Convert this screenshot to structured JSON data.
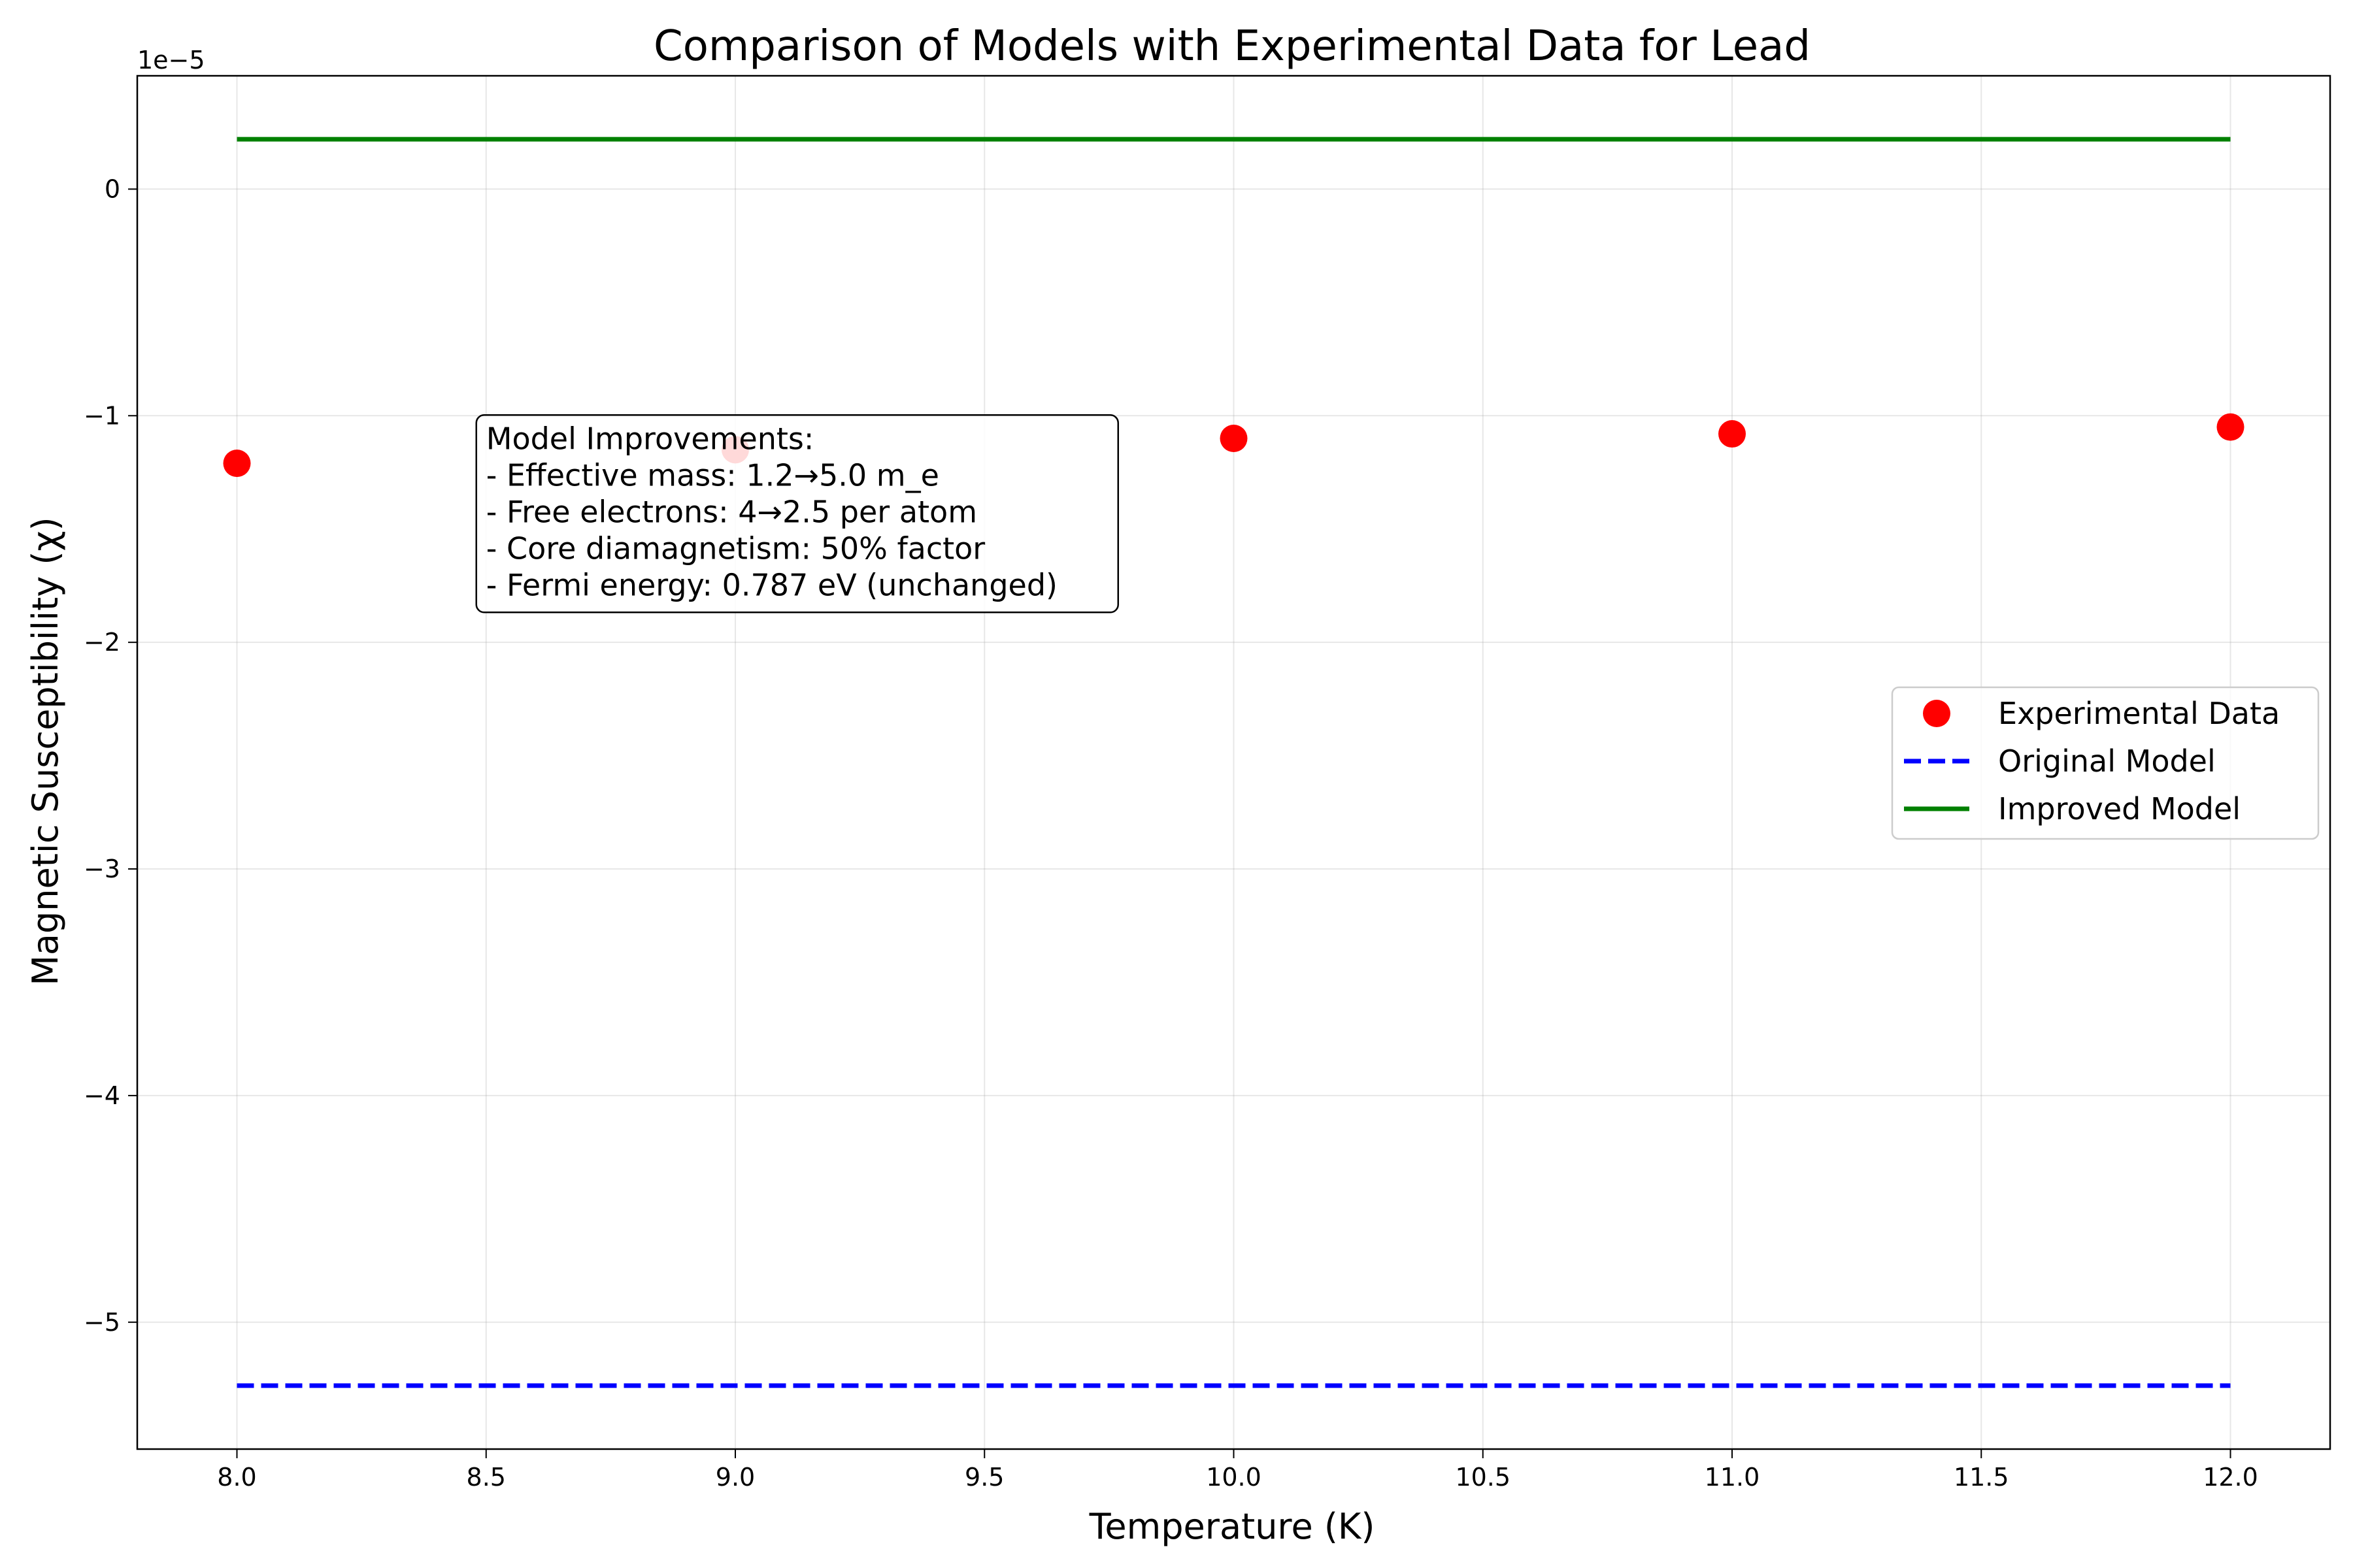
{
  "chart_data": {
    "type": "line",
    "title": "Comparison of Models with Experimental Data for Lead",
    "xlabel": "Temperature (K)",
    "ylabel": "Magnetic Susceptibility (χ)",
    "y_offset_label": "1e−5",
    "xlim": [
      7.8,
      12.2
    ],
    "ylim": [
      -5.56,
      0.5
    ],
    "x_ticks": [
      8.0,
      8.5,
      9.0,
      9.5,
      10.0,
      10.5,
      11.0,
      11.5,
      12.0
    ],
    "x_tick_labels": [
      "8.0",
      "8.5",
      "9.0",
      "9.5",
      "10.0",
      "10.5",
      "11.0",
      "11.5",
      "12.0"
    ],
    "y_ticks": [
      0,
      -1,
      -2,
      -3,
      -4,
      -5
    ],
    "y_tick_labels": [
      "0",
      "−1",
      "−2",
      "−3",
      "−4",
      "−5"
    ],
    "y_scale_note": "values in units of 1e-5",
    "grid": true,
    "legend_position": "center-right",
    "series": [
      {
        "name": "Experimental Data",
        "style": "markers",
        "color": "#ff0000",
        "x": [
          8,
          9,
          10,
          11,
          12
        ],
        "y": [
          -1.21,
          -1.15,
          -1.1,
          -1.08,
          -1.05
        ]
      },
      {
        "name": "Original Model",
        "style": "dashed",
        "color": "#0000ff",
        "x": [
          8,
          12
        ],
        "y": [
          -5.28,
          -5.28
        ]
      },
      {
        "name": "Improved Model",
        "style": "solid",
        "color": "#008000",
        "x": [
          8,
          12
        ],
        "y": [
          0.22,
          0.22
        ]
      }
    ],
    "annotation": {
      "anchor_x": 8.5,
      "anchor_y": -1.0,
      "lines": [
        "Model Improvements:",
        "- Effective mass: 1.2→5.0 m_e",
        "- Free electrons: 4→2.5 per atom",
        "- Core diamagnetism: 50% factor",
        "- Fermi energy: 0.787 eV (unchanged)"
      ]
    }
  }
}
